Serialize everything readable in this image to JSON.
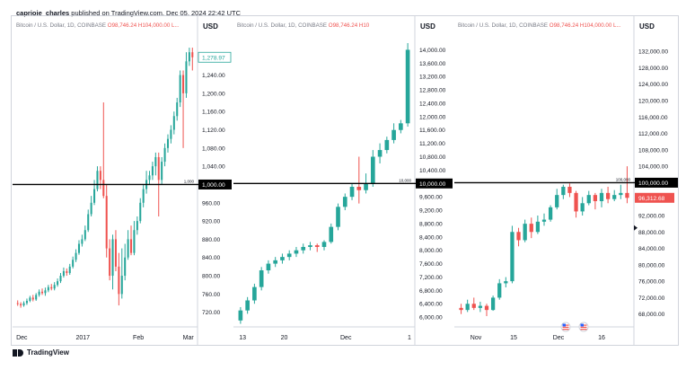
{
  "header": {
    "author": "caprioie_charles",
    "published_text": "published on TradingView.com, Dec 05, 2024 22:42 UTC"
  },
  "footer": {
    "brand": "TradingView"
  },
  "colors": {
    "up": "#26a69a",
    "down": "#ef5350",
    "level_line": "#000000",
    "axis_text": "#131722",
    "header_gray": "#787b86"
  },
  "icons": [
    "tradingview-logo-icon",
    "flag-us-icon"
  ],
  "chart_data": [
    {
      "type": "candlestick",
      "symbol_line": "Bitcoin / U.S. Dollar, 1D, COINBASE",
      "open_label": "O98,746.24",
      "high_label": "H104,000.00",
      "trunc": "L...",
      "currency": "USD",
      "ylim": [
        680,
        1310
      ],
      "yticks": [
        720,
        760,
        800,
        840,
        880,
        920,
        960,
        1000,
        1040,
        1080,
        1120,
        1160,
        1200,
        1240
      ],
      "ytick_labels": [
        "720.00",
        "760.00",
        "800.00",
        "840.00",
        "880.00",
        "920.00",
        "960.00",
        "1,000.00",
        "1,040.00",
        "1,080.00",
        "1,120.00",
        "1,160.00",
        "1,200.00",
        "1,240.00"
      ],
      "xticks": [
        {
          "pos": 0.05,
          "label": "Dec"
        },
        {
          "pos": 0.38,
          "label": "2017"
        },
        {
          "pos": 0.68,
          "label": "Feb"
        },
        {
          "pos": 0.95,
          "label": "Mar"
        }
      ],
      "level": {
        "value": 1000,
        "label": "1,000.00",
        "small_label": "1,000"
      },
      "last_price": {
        "value": 1278.97,
        "label": "1,278.97"
      },
      "candles": [
        [
          740,
          738,
          746,
          734
        ],
        [
          738,
          735,
          742,
          730
        ],
        [
          735,
          740,
          744,
          732
        ],
        [
          740,
          745,
          750,
          736
        ],
        [
          745,
          752,
          756,
          742
        ],
        [
          752,
          748,
          758,
          744
        ],
        [
          748,
          758,
          762,
          745
        ],
        [
          758,
          765,
          770,
          754
        ],
        [
          765,
          762,
          772,
          758
        ],
        [
          762,
          768,
          774,
          756
        ],
        [
          768,
          775,
          780,
          764
        ],
        [
          775,
          772,
          782,
          768
        ],
        [
          772,
          780,
          786,
          768
        ],
        [
          780,
          788,
          794,
          776
        ],
        [
          788,
          800,
          806,
          784
        ],
        [
          800,
          810,
          818,
          796
        ],
        [
          810,
          806,
          816,
          800
        ],
        [
          806,
          820,
          826,
          802
        ],
        [
          820,
          835,
          842,
          816
        ],
        [
          835,
          850,
          858,
          830
        ],
        [
          850,
          870,
          878,
          846
        ],
        [
          870,
          880,
          890,
          864
        ],
        [
          880,
          900,
          910,
          876
        ],
        [
          900,
          935,
          945,
          896
        ],
        [
          935,
          960,
          975,
          930
        ],
        [
          960,
          990,
          1010,
          955
        ],
        [
          990,
          1030,
          1040,
          985
        ],
        [
          1030,
          1010,
          1040,
          990
        ],
        [
          1010,
          975,
          1180,
          970
        ],
        [
          975,
          860,
          1000,
          840
        ],
        [
          860,
          800,
          880,
          790
        ],
        [
          800,
          880,
          890,
          770
        ],
        [
          880,
          820,
          900,
          810
        ],
        [
          820,
          760,
          850,
          735
        ],
        [
          760,
          800,
          860,
          750
        ],
        [
          800,
          840,
          870,
          790
        ],
        [
          840,
          880,
          900,
          835
        ],
        [
          880,
          850,
          910,
          845
        ],
        [
          850,
          900,
          920,
          845
        ],
        [
          900,
          920,
          930,
          890
        ],
        [
          920,
          960,
          970,
          915
        ],
        [
          960,
          990,
          1000,
          950
        ],
        [
          990,
          1010,
          1030,
          980
        ],
        [
          1010,
          1020,
          1030,
          1000
        ],
        [
          1020,
          1040,
          1050,
          1010
        ],
        [
          1040,
          1060,
          1070,
          1020
        ],
        [
          1060,
          1010,
          1070,
          930
        ],
        [
          1010,
          1050,
          1060,
          1000
        ],
        [
          1050,
          1080,
          1090,
          1040
        ],
        [
          1080,
          1100,
          1110,
          1070
        ],
        [
          1100,
          1120,
          1130,
          1090
        ],
        [
          1120,
          1150,
          1160,
          1110
        ],
        [
          1150,
          1180,
          1190,
          1140
        ],
        [
          1180,
          1240,
          1250,
          1170
        ],
        [
          1240,
          1200,
          1250,
          1080
        ],
        [
          1200,
          1270,
          1290,
          1190
        ],
        [
          1270,
          1290,
          1300,
          1260
        ],
        [
          1290,
          1278.97,
          1300,
          1250
        ]
      ]
    },
    {
      "type": "candlestick",
      "symbol_line": "Bitcoin / U.S. Dollar, 1D, COINBASE",
      "open_label": "O98,746.24",
      "high_label": "H10",
      "trunc": "",
      "currency": "USD",
      "ylim": [
        5600,
        14200
      ],
      "yticks": [
        6000,
        6400,
        6800,
        7200,
        7600,
        8000,
        8400,
        8800,
        9200,
        9600,
        10000,
        10400,
        10800,
        11200,
        11600,
        12000,
        12400,
        12800,
        13200,
        13600,
        14000
      ],
      "ytick_labels": [
        "6,000.00",
        "6,400.00",
        "6,800.00",
        "7,200.00",
        "7,600.00",
        "8,000.00",
        "8,400.00",
        "8,800.00",
        "9,200.00",
        "9,600.00",
        "10,000.00",
        "10,400.00",
        "10,800.00",
        "11,200.00",
        "11,600.00",
        "12,000.00",
        "12,400.00",
        "12,800.00",
        "13,200.00",
        "13,600.00",
        "14,000.00"
      ],
      "xticks": [
        {
          "pos": 0.05,
          "label": "13"
        },
        {
          "pos": 0.28,
          "label": "20"
        },
        {
          "pos": 0.62,
          "label": "Dec"
        },
        {
          "pos": 0.97,
          "label": "1"
        }
      ],
      "level": {
        "value": 10000,
        "label": "10,000.00",
        "small_label": "10,000"
      },
      "last_price": null,
      "candles": [
        [
          5900,
          6200,
          6300,
          5800
        ],
        [
          6200,
          6500,
          6600,
          6100
        ],
        [
          6500,
          6900,
          7000,
          6400
        ],
        [
          6900,
          7400,
          7500,
          6800
        ],
        [
          7400,
          7600,
          7700,
          7300
        ],
        [
          7600,
          7700,
          7800,
          7500
        ],
        [
          7700,
          7800,
          7900,
          7600
        ],
        [
          7800,
          7900,
          8000,
          7700
        ],
        [
          7900,
          8000,
          8100,
          7800
        ],
        [
          8000,
          8100,
          8200,
          7900
        ],
        [
          8100,
          8150,
          8250,
          8000
        ],
        [
          8150,
          8100,
          8200,
          7950
        ],
        [
          8100,
          8250,
          8300,
          8000
        ],
        [
          8250,
          8700,
          8800,
          8200
        ],
        [
          8700,
          9300,
          9400,
          8600
        ],
        [
          9300,
          9600,
          9700,
          9200
        ],
        [
          9600,
          9900,
          10000,
          9500
        ],
        [
          9900,
          9800,
          10800,
          9400
        ],
        [
          9800,
          10000,
          10300,
          9700
        ],
        [
          10000,
          10800,
          11000,
          9900
        ],
        [
          10800,
          11000,
          11200,
          10600
        ],
        [
          11000,
          11300,
          11400,
          10900
        ],
        [
          11300,
          11600,
          11800,
          11200
        ],
        [
          11600,
          11800,
          11900,
          11500
        ],
        [
          11800,
          14000,
          14200,
          11700
        ]
      ]
    },
    {
      "type": "candlestick",
      "symbol_line": "Bitcoin / U.S. Dollar, 1D, COINBASE",
      "open_label": "O98,746.24",
      "high_label": "H104,000.00 L...",
      "trunc": "",
      "currency": "USD",
      "ylim": [
        64000,
        134000
      ],
      "yticks": [
        68000,
        72000,
        76000,
        80000,
        84000,
        88000,
        92000,
        96000,
        100000,
        104000,
        108000,
        112000,
        116000,
        120000,
        124000,
        128000,
        132000
      ],
      "ytick_labels": [
        "68,000.00",
        "72,000.00",
        "76,000.00",
        "80,000.00",
        "84,000.00",
        "88,000.00",
        "92,000.00",
        "96,000.00",
        "100,000.00",
        "104,000.00",
        "108,000.00",
        "112,000.00",
        "116,000.00",
        "120,000.00",
        "124,000.00",
        "128,000.00",
        "132,000.00"
      ],
      "xticks": [
        {
          "pos": 0.12,
          "label": "Nov"
        },
        {
          "pos": 0.33,
          "label": "15"
        },
        {
          "pos": 0.58,
          "label": "Dec"
        },
        {
          "pos": 0.82,
          "label": "16"
        }
      ],
      "level": {
        "value": 100000,
        "label": "100,000.00",
        "small_label": "100,000"
      },
      "last_price": {
        "value": 96312.68,
        "label": "96,312.68"
      },
      "candles": [
        [
          69500,
          69000,
          70500,
          68000
        ],
        [
          69000,
          70500,
          71500,
          68500
        ],
        [
          70500,
          69500,
          72000,
          69000
        ],
        [
          69500,
          70000,
          71000,
          68500
        ],
        [
          70000,
          69000,
          70500,
          67500
        ],
        [
          69000,
          72000,
          72500,
          68800
        ],
        [
          72000,
          75500,
          76500,
          71500
        ],
        [
          75500,
          76000,
          77000,
          74500
        ],
        [
          76000,
          88000,
          89500,
          75500
        ],
        [
          88000,
          86000,
          89000,
          84500
        ],
        [
          86000,
          90000,
          91000,
          85500
        ],
        [
          90000,
          88000,
          91500,
          86500
        ],
        [
          88000,
          90500,
          92000,
          87500
        ],
        [
          90500,
          91000,
          92500,
          89500
        ],
        [
          91000,
          94000,
          94500,
          90500
        ],
        [
          94000,
          97000,
          98500,
          93500
        ],
        [
          97000,
          99000,
          99500,
          96000
        ],
        [
          99000,
          97500,
          99800,
          96500
        ],
        [
          97500,
          93000,
          98000,
          91500
        ],
        [
          93000,
          95000,
          96500,
          92000
        ],
        [
          95000,
          97000,
          98000,
          94500
        ],
        [
          97000,
          95500,
          97500,
          93500
        ],
        [
          95500,
          97500,
          98500,
          94000
        ],
        [
          97500,
          96000,
          99000,
          95000
        ],
        [
          96000,
          97000,
          98200,
          95500
        ],
        [
          97000,
          97500,
          99500,
          96000
        ],
        [
          97500,
          96312.68,
          104000,
          95000
        ]
      ]
    }
  ]
}
